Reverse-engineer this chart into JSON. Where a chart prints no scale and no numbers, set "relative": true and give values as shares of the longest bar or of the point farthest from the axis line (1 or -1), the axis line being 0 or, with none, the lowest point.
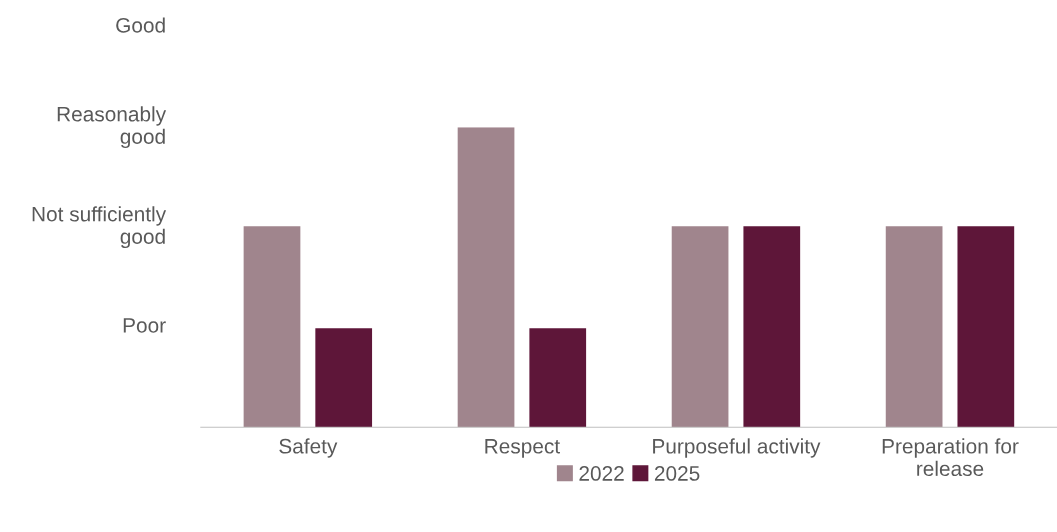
{
  "chart_data": {
    "type": "bar",
    "relative": true,
    "categories": [
      "Safety",
      "Respect",
      "Purposeful activity",
      "Preparation for\nrelease"
    ],
    "series": [
      {
        "name": "2022",
        "color": "#a0858d",
        "values": [
          0.67,
          1,
          0.67,
          0.67
        ]
      },
      {
        "name": "2025",
        "color": "#5e1639",
        "values": [
          0.33,
          0.33,
          0.67,
          0.67
        ]
      }
    ],
    "annotations": [
      "Poor",
      "Not sufficiently\ngood",
      "Reasonably\ngood",
      "Good"
    ],
    "grid": false,
    "legend": "bottom"
  }
}
